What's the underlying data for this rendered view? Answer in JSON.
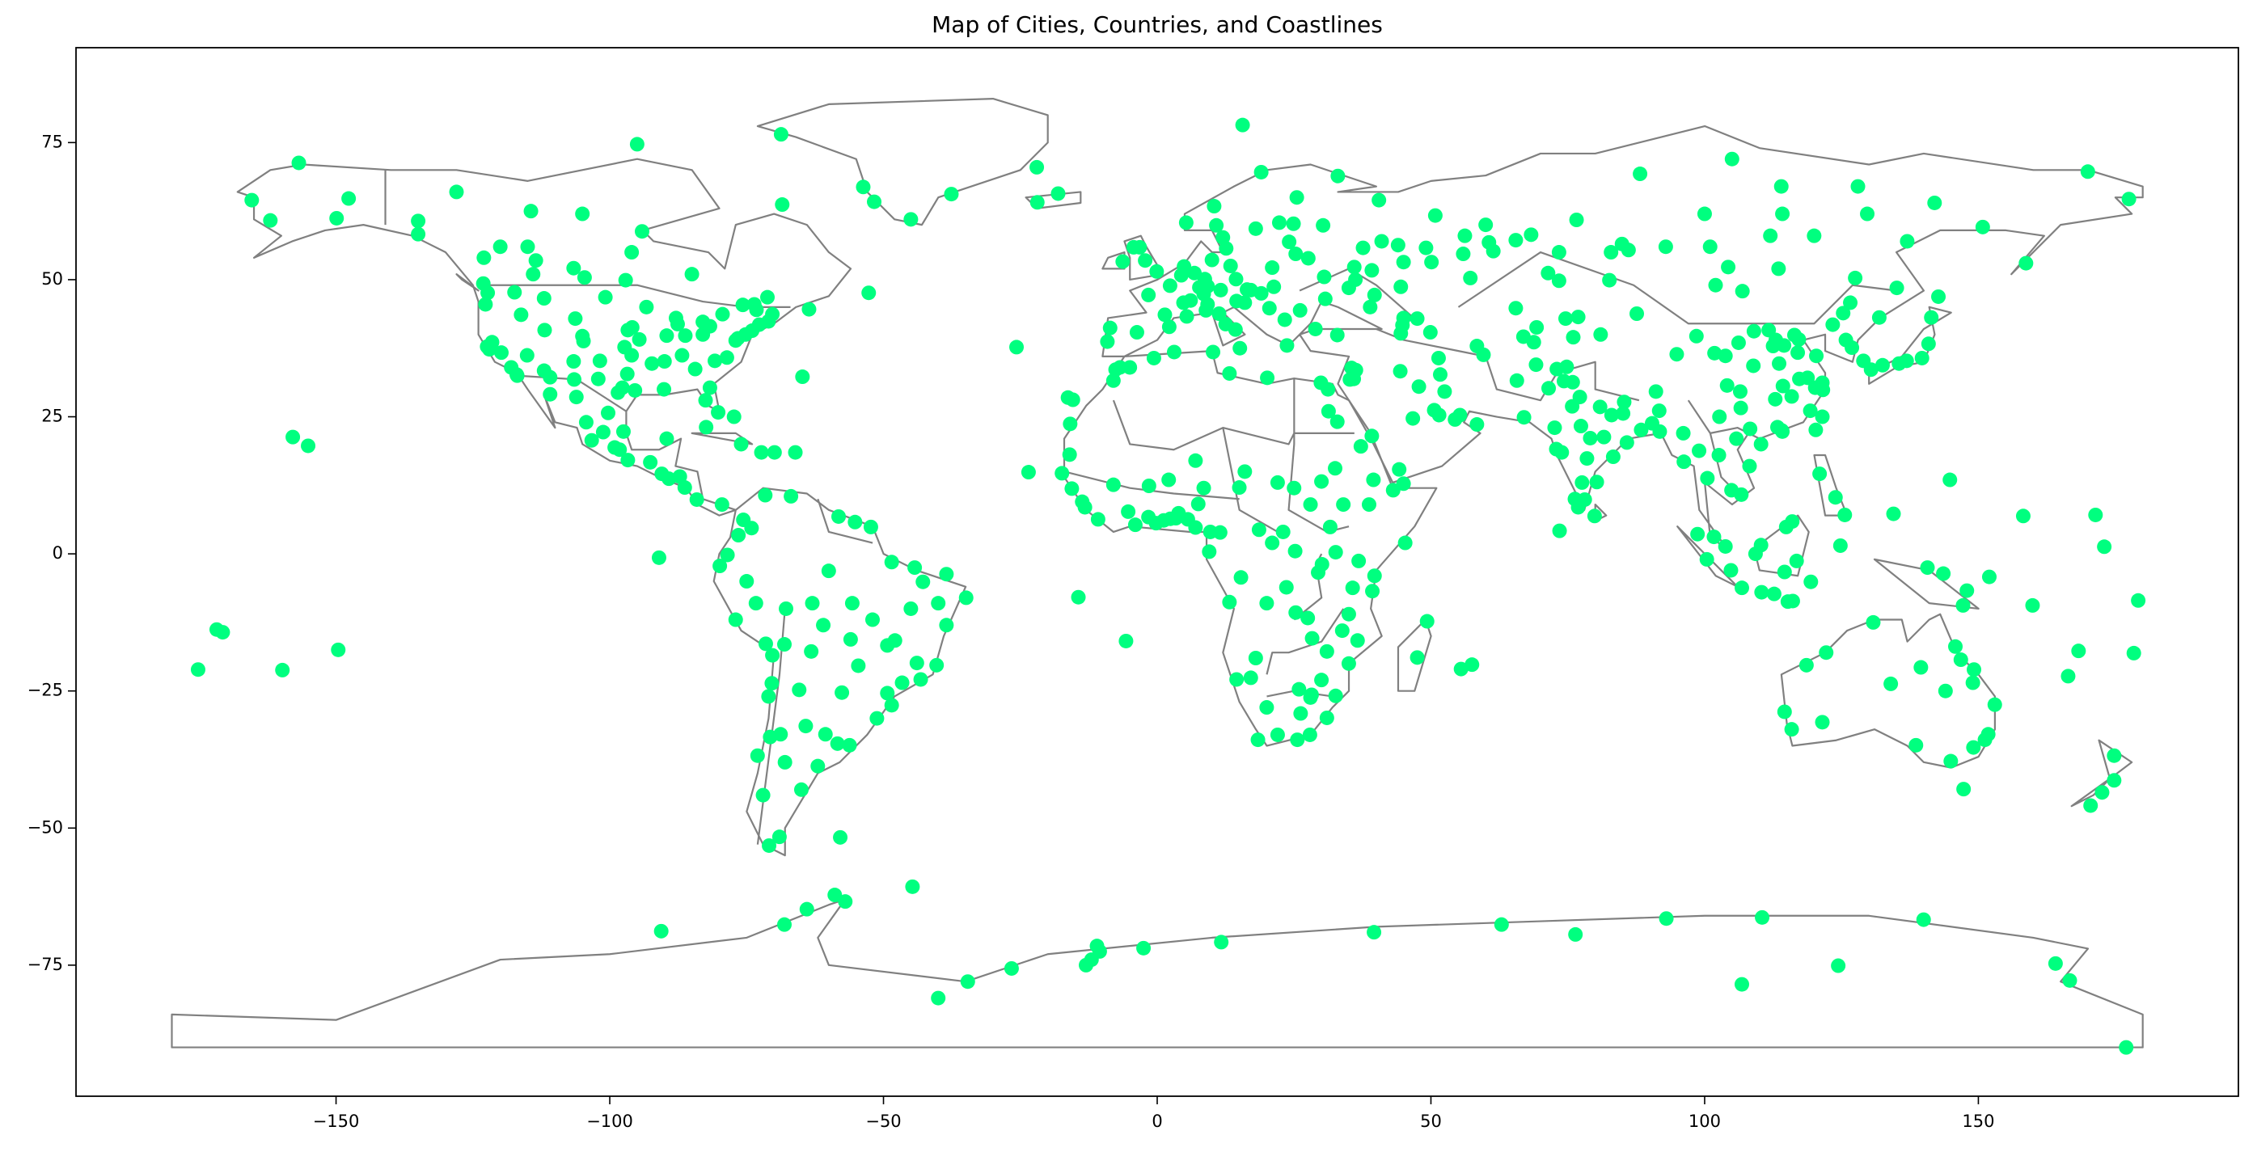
{
  "chart_data": {
    "type": "scatter",
    "title": "Map of Cities, Countries, and Coastlines",
    "color": "#00ff7f",
    "xlim": [
      -197.5,
      197.5
    ],
    "ylim": [
      -98.9,
      92.3
    ],
    "xticks": [
      {
        "value": -150,
        "label": "−150"
      },
      {
        "value": -100,
        "label": "−100"
      },
      {
        "value": -50,
        "label": "−50"
      },
      0,
      50,
      100,
      150
    ],
    "yticks": [
      {
        "value": -75,
        "label": "−75"
      },
      {
        "value": -50,
        "label": "−50"
      },
      {
        "value": -25,
        "label": "−25"
      },
      0,
      25,
      50,
      75
    ],
    "x": [
      -74,
      -118,
      -87.6,
      -95.4,
      -112,
      -75.2,
      -98.5,
      -117,
      -96.8,
      -122,
      -97.7,
      -81.7,
      -83,
      -80.8,
      -86.2,
      -122.4,
      -122.3,
      -105,
      -77,
      -71,
      -86.8,
      -83,
      -90,
      -122.7,
      -115.1,
      -76.6,
      -87.9,
      -106.6,
      -110.9,
      -119.8,
      -121.5,
      -94.6,
      -84.4,
      -80.2,
      -95.9,
      -78.6,
      -96,
      -93.3,
      -97.3,
      -90.1,
      -81.7,
      -82.5,
      -104.8,
      -111.9,
      -112,
      -100.8,
      -96.7,
      -106.3,
      -116.2,
      -117.4,
      -92.3,
      -89.6,
      -70.3,
      -73.2,
      -72.7,
      -101.8,
      -102.1,
      -106.5,
      -79.4,
      -73.6,
      -123.1,
      -114,
      -113.5,
      -97.1,
      -75.7,
      -71.2,
      -63.6,
      -52.7,
      -104.6,
      -106.6,
      -114.4,
      -135,
      -68.5,
      -94.1,
      -115,
      -120,
      -128,
      -105,
      -96,
      -85,
      -123,
      -149.9,
      -147.7,
      -156.8,
      -165.4,
      -162,
      -135,
      -99.1,
      -103.3,
      -100.3,
      -98.2,
      -116.9,
      -106.1,
      -110.9,
      -89.6,
      -96.7,
      -92.6,
      -104.3,
      -101.2,
      -97.5,
      -90.5,
      -89.2,
      -87.2,
      -86.3,
      -84.1,
      -79.5,
      -82.4,
      -76,
      -72.3,
      -69.9,
      -66.1,
      -77.3,
      -64.8,
      -74.1,
      -75.6,
      -76.5,
      -66.9,
      -71.6,
      -78.5,
      -79.9,
      -77,
      -71.5,
      -68.1,
      -63.2,
      -70.7,
      -73,
      -58.4,
      -64.2,
      -68.8,
      -60.6,
      -65.4,
      -57.6,
      -56.2,
      -46.6,
      -43.2,
      -43.9,
      -47.9,
      -38.5,
      -34.9,
      -38.5,
      -48.5,
      -60,
      -51.2,
      -49.3,
      -48.5,
      -55.7,
      -63,
      -67.8,
      -56,
      -54.6,
      -42.8,
      -44.3,
      -49.3,
      -40.3,
      -58.2,
      -55.2,
      -52.3,
      -72,
      -68,
      -69,
      -70.9,
      -57.9,
      -62,
      -65,
      -71,
      -70.4,
      -70.3,
      -73.3,
      -75,
      -61,
      -52,
      -45,
      -40,
      -0.1,
      2.35,
      -3.7,
      2.2,
      12.5,
      9.2,
      13.4,
      10,
      11.6,
      16.4,
      19,
      21,
      14.4,
      4.9,
      4.4,
      8.5,
      6.1,
      12.6,
      18,
      10.8,
      24.9,
      24.1,
      25.3,
      27.6,
      30.5,
      37.6,
      30.3,
      26.1,
      23.3,
      20.5,
      16,
      14.5,
      23.7,
      28.9,
      32.9,
      -9.1,
      -8.6,
      -6.3,
      -3.2,
      -2.2,
      -4.3,
      5.4,
      4.8,
      1.4,
      -1.6,
      7.7,
      14.3,
      15.1,
      8.9,
      11.3,
      6.8,
      8.7,
      9.2,
      17.1,
      21.3,
      35,
      36.2,
      30.7,
      39.7,
      44,
      49.1,
      50.1,
      56.2,
      60.6,
      61.4,
      55.9,
      44.5,
      45,
      39.2,
      33,
      40.5,
      50.8,
      25.5,
      19,
      10.4,
      5.3,
      22.3,
      12,
      45,
      47.5,
      38.9,
      41,
      36,
      44.8,
      44.5,
      49.9,
      51.4,
      59.6,
      51.7,
      52.5,
      44.4,
      47.8,
      36.3,
      35.5,
      35.2,
      35.9,
      46.7,
      39.2,
      50.6,
      51.5,
      54.4,
      55.3,
      58.4,
      44.2,
      45,
      69.2,
      65.7,
      67,
      74.3,
      73,
      71.5,
      69.3,
      66.9,
      58.4,
      71.4,
      76.9,
      74.6,
      68.8,
      73.4,
      82.6,
      65.5,
      57.2,
      77.2,
      72.9,
      88.4,
      80.3,
      77.6,
      78.5,
      72.6,
      75.8,
      80.9,
      85.1,
      83,
      73.9,
      76.9,
      78.1,
      79.1,
      77.4,
      81.6,
      85.8,
      91.7,
      75.9,
      74.8,
      76.3,
      83.3,
      85.3,
      90.4,
      91.8,
      79.9,
      73.5,
      96.2,
      96.1,
      100.5,
      98.98,
      102.6,
      104.9,
      105.8,
      106.7,
      108.2,
      101.7,
      103.8,
      106.8,
      112.7,
      110.4,
      98.7,
      104.8,
      100.4,
      116.1,
      119.4,
      124.8,
      115.2,
      114.6,
      109.3,
      116.8,
      110.3,
      116,
      121,
      123.9,
      125.6,
      114.9,
      140.7,
      147.2,
      116.4,
      121.5,
      113.3,
      114.1,
      104.1,
      106.5,
      114.3,
      108.9,
      117.2,
      118.8,
      120.2,
      123.4,
      126.6,
      125.3,
      113.6,
      112.9,
      115.9,
      119.3,
      102.7,
      106.6,
      108.3,
      110.3,
      103.8,
      101.8,
      106.2,
      111.7,
      87.6,
      91.1,
      117,
      120.4,
      112.5,
      114.5,
      117.3,
      121.6,
      113,
      109,
      94.9,
      98.5,
      81,
      76,
      121.5,
      120.3,
      114.2,
      106.9,
      102,
      126.9,
      129,
      125.8,
      139.7,
      135.5,
      136.9,
      130.4,
      141.4,
      140.9,
      132.5,
      131.9,
      135.1,
      142.7,
      104.3,
      113.5,
      127.5,
      82.9,
      73.4,
      86.1,
      92.9,
      84.9,
      65.5,
      68.3,
      76.6,
      88.2,
      129.7,
      150.8,
      158.7,
      177.5,
      114.2,
      137,
      112,
      101,
      120,
      128,
      142,
      170,
      60,
      105,
      114,
      100,
      31.2,
      29.9,
      32.9,
      31.3,
      32.5,
      3.1,
      -0.6,
      10.2,
      13.2,
      20.1,
      -7.6,
      -6.8,
      -8,
      -5,
      -15.9,
      -17.4,
      -16,
      -8,
      -1.5,
      2.1,
      7,
      15,
      18.6,
      11.5,
      9.7,
      3.4,
      7.5,
      8.5,
      3.9,
      5.6,
      7,
      -0.2,
      -1.6,
      -4,
      -5.3,
      -10.8,
      -13.2,
      -13.7,
      -15.6,
      2.4,
      1.2,
      38.7,
      39.5,
      43.1,
      45.3,
      36.8,
      39.7,
      32.6,
      30.1,
      29.4,
      39.3,
      35.7,
      33.8,
      28.3,
      31,
      32.6,
      35,
      28,
      28.2,
      18.4,
      31,
      25.6,
      26.2,
      17.1,
      25.9,
      13.2,
      15.3,
      27.5,
      25.3,
      25.2,
      23.6,
      20,
      47.5,
      49.3,
      57.5,
      55.5,
      9.5,
      21,
      23,
      31.6,
      28,
      25,
      36.6,
      35,
      18,
      14.5,
      20,
      22,
      27.9,
      30,
      16,
      22,
      30,
      37.2,
      34,
      151.2,
      144.96,
      153,
      115.9,
      138.6,
      147.3,
      149.1,
      130.8,
      146.8,
      145.8,
      149.2,
      151.8,
      149,
      134,
      121.5,
      118.6,
      122.2,
      114.6,
      139.5,
      144,
      174.8,
      174.8,
      172.6,
      170.5,
      178.4,
      166.4,
      168.3,
      159.9,
      173,
      171.4,
      158.2,
      134.5,
      144.8,
      -157.9,
      -155.1,
      -149.6,
      -171.8,
      -170.7,
      -175.2,
      -159.8,
      179.2,
      147.9,
      143.6,
      152,
      -23.5,
      -25.7,
      -16.3,
      -15.4,
      -5.7,
      -14.4,
      -21.9,
      -18.1,
      -91,
      -51.7,
      -53.7,
      -68.7,
      -22,
      -37.6,
      -45,
      15.6,
      -95,
      -56.98,
      -58.9,
      -68.1,
      -64,
      -90.6,
      -44.7,
      -40,
      -26.6,
      -34.6,
      -11,
      -2.5,
      11.7,
      39.6,
      62.9,
      76.4,
      93,
      110.5,
      140,
      124.4,
      106.8,
      166.7,
      164.1,
      177,
      -12,
      -13,
      -10.5
    ],
    "values": [
      40.7,
      34,
      41.9,
      29.8,
      33.4,
      40,
      29.4,
      32.7,
      32.8,
      37.3,
      30.3,
      30.3,
      40,
      35.2,
      39.8,
      37.8,
      47.6,
      39.7,
      38.9,
      42.4,
      36.2,
      42.3,
      35.1,
      45.5,
      36.2,
      39.3,
      43,
      35.1,
      32.2,
      36.7,
      38.6,
      39.1,
      33.7,
      25.8,
      41.3,
      35.8,
      36.2,
      45,
      37.7,
      30,
      41.5,
      28,
      38.8,
      40.8,
      46.6,
      46.8,
      40.8,
      42.9,
      43.6,
      47.7,
      34.7,
      39.8,
      43.7,
      44.5,
      41.8,
      35.2,
      31.9,
      31.8,
      43.7,
      45.5,
      49.3,
      51,
      53.5,
      49.9,
      45.4,
      46.8,
      44.6,
      47.6,
      50.4,
      52.1,
      62.5,
      60.7,
      63.7,
      58.8,
      56,
      56,
      66,
      62,
      55,
      51,
      54,
      61.2,
      64.8,
      71.3,
      64.5,
      60.8,
      58.3,
      19.4,
      20.7,
      25.7,
      19,
      32.5,
      28.6,
      29.1,
      21,
      17.1,
      16.7,
      24,
      22.2,
      22.3,
      14.6,
      13.7,
      14.1,
      12.1,
      9.9,
      9,
      23.1,
      20,
      18.5,
      18.5,
      18.5,
      25,
      32.3,
      4.7,
      6.2,
      3.4,
      10.5,
      10.7,
      -0.2,
      -2.2,
      -12,
      -16.4,
      -16.5,
      -17.8,
      -33.4,
      -36.8,
      -34.6,
      -31.4,
      -32.9,
      -32.9,
      -24.8,
      -25.3,
      -34.9,
      -23.5,
      -22.9,
      -19.9,
      -15.8,
      -13,
      -8,
      -3.7,
      -1.5,
      -3.1,
      -30,
      -25.4,
      -27.6,
      -9,
      -9,
      -10,
      -15.6,
      -20.4,
      -5.1,
      -2.5,
      -16.7,
      -20.3,
      6.8,
      5.8,
      4.9,
      -44,
      -38,
      -51.6,
      -53.2,
      -51.7,
      -38.7,
      -43,
      -26,
      -23.6,
      -18.5,
      -9,
      -5,
      -13,
      -12,
      -10,
      -9,
      51.5,
      48.9,
      40.4,
      41.4,
      41.9,
      45.5,
      52.5,
      53.6,
      48.1,
      48.2,
      47.5,
      52.2,
      50.1,
      52.4,
      50.8,
      47.4,
      46.2,
      55.7,
      59.3,
      59.9,
      60.2,
      56.9,
      54.7,
      53.9,
      50.5,
      55.8,
      59.9,
      44.4,
      42.7,
      44.8,
      45.8,
      46.1,
      38,
      41,
      39.9,
      38.7,
      41.2,
      53.3,
      55.9,
      53.5,
      55.9,
      43.3,
      45.8,
      43.6,
      47.2,
      48.6,
      40.9,
      37.5,
      44.4,
      43.8,
      51.2,
      50.1,
      48.8,
      48.1,
      48.7,
      48.5,
      50,
      46.5,
      47.2,
      56.3,
      55.8,
      53.2,
      58,
      56.8,
      55.2,
      54.7,
      48.7,
      53.2,
      51.7,
      68.9,
      64.5,
      61.7,
      65,
      69.6,
      63.4,
      60.4,
      60.4,
      57.7,
      43,
      42.9,
      45,
      57,
      52.3,
      41.7,
      40.2,
      40.4,
      35.7,
      36.3,
      32.7,
      29.6,
      33.3,
      30.5,
      33.5,
      33.9,
      31.8,
      31.9,
      24.7,
      21.5,
      26.2,
      25.3,
      24.5,
      25.3,
      23.6,
      15.4,
      12.8,
      34.5,
      31.6,
      24.9,
      31.5,
      33.7,
      30.2,
      41.3,
      39.6,
      37.9,
      51.2,
      43.2,
      42.9,
      38.6,
      49.8,
      49.9,
      44.8,
      50.3,
      28.6,
      19.1,
      22.6,
      13.1,
      13,
      17.4,
      23,
      26.9,
      26.8,
      25.6,
      25.3,
      18.5,
      8.5,
      9.9,
      21.1,
      23.3,
      21.3,
      20.3,
      26.1,
      31.3,
      34.1,
      10,
      17.7,
      27.7,
      23.8,
      22.3,
      6.9,
      4.2,
      16.8,
      22,
      13.8,
      18.8,
      18,
      11.6,
      21,
      10.8,
      16,
      3.1,
      1.35,
      -6.2,
      -7.3,
      -7,
      3.6,
      -3,
      -1,
      -8.6,
      -5.1,
      1.5,
      -8.7,
      -3.3,
      0,
      -1.3,
      1.6,
      5.9,
      14.6,
      10.3,
      7.1,
      4.9,
      -2.5,
      -9.4,
      39.9,
      31.2,
      23.1,
      22.5,
      30.7,
      29.6,
      30.6,
      34.3,
      39.1,
      32.1,
      30.3,
      41.8,
      45.8,
      43.9,
      34.7,
      28.2,
      28.7,
      26.1,
      25,
      26.6,
      22.8,
      20,
      36.1,
      36.6,
      38.5,
      40.8,
      43.8,
      29.6,
      36.7,
      36.1,
      37.9,
      38,
      31.9,
      29.9,
      39,
      40.6,
      36.4,
      39.7,
      40,
      39.5,
      25,
      22.6,
      22.3,
      47.9,
      49,
      37.6,
      35.2,
      39,
      35.7,
      34.7,
      35.2,
      33.6,
      43.1,
      38.3,
      34.4,
      43.1,
      48.5,
      46.9,
      52.3,
      52,
      50.3,
      55,
      55,
      55.4,
      56,
      56.5,
      57.2,
      58.2,
      60.9,
      69.3,
      62,
      59.6,
      53,
      64.7,
      62,
      57,
      58,
      56,
      58,
      67,
      64,
      69.7,
      60,
      72,
      67,
      62,
      30,
      31.2,
      24.1,
      26,
      15.6,
      36.8,
      35.7,
      36.8,
      32.9,
      32.1,
      33.6,
      34,
      31.6,
      34,
      23.7,
      14.7,
      18.1,
      12.6,
      12.4,
      13.5,
      17,
      12.1,
      4.4,
      3.9,
      4,
      6.5,
      9.1,
      12,
      7.4,
      6.3,
      4.8,
      5.6,
      6.7,
      5.3,
      7.7,
      6.3,
      8.5,
      9.5,
      11.9,
      6.4,
      6.1,
      9,
      13.5,
      11.6,
      2,
      -1.3,
      -4,
      0.3,
      -1.9,
      -3.4,
      -6.8,
      -6.2,
      -14,
      -15.4,
      -17.8,
      -25.9,
      -20,
      -26.2,
      -25.7,
      -33.9,
      -29.9,
      -33.9,
      -29.1,
      -22.6,
      -24.7,
      -8.8,
      -4.3,
      -11.7,
      -10.7,
      0.5,
      -6.1,
      -9,
      -18.9,
      -12.3,
      -20.2,
      -21,
      0.4,
      2,
      4,
      4.9,
      9,
      12,
      -15.8,
      -11,
      -19,
      -22.9,
      -28,
      -33,
      -33,
      -23,
      15,
      13,
      13.2,
      19.6,
      9,
      -33.9,
      -37.8,
      -27.5,
      -32,
      -34.9,
      -42.9,
      -35.3,
      -12.5,
      -19.3,
      -16.9,
      -21.1,
      -32.9,
      -23.5,
      -23.7,
      -30.7,
      -20.3,
      -18,
      -28.8,
      -20.7,
      -25,
      -36.8,
      -41.3,
      -43.5,
      -45.9,
      -18.1,
      -22.3,
      -17.7,
      -9.4,
      1.3,
      7.1,
      6.9,
      7.3,
      13.5,
      21.3,
      19.7,
      -17.5,
      -13.8,
      -14.3,
      -21.1,
      -21.2,
      -8.5,
      -6.7,
      -3.6,
      -4.2,
      14.9,
      37.7,
      28.5,
      28.1,
      -15.9,
      -7.9,
      64.1,
      65.7,
      -0.7,
      64.2,
      66.9,
      76.5,
      70.5,
      65.6,
      61,
      78.2,
      74.7,
      -63.4,
      -62.2,
      -67.6,
      -64.8,
      -68.8,
      -60.7,
      -81,
      -75.6,
      -78,
      -71.5,
      -71.9,
      -70.8,
      -69,
      -67.6,
      -69.4,
      -66.5,
      -66.3,
      -66.7,
      -75.1,
      -78.5,
      -77.8,
      -74.7,
      -90,
      -74,
      -75,
      -72.5
    ]
  }
}
